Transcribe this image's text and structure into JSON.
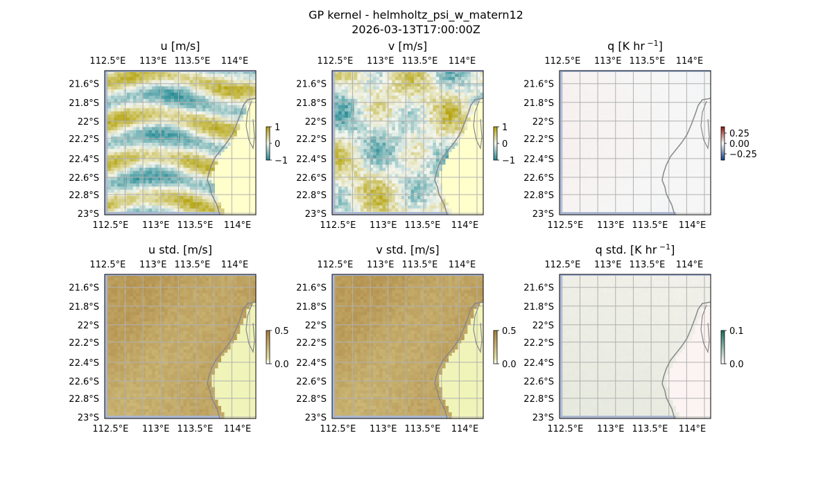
{
  "figure": {
    "title": "GP kernel - helmholtz_psi_w_matern12",
    "subtitle": "2026-03-13T17:00:00Z"
  },
  "colors": {
    "land": "#ffffcc",
    "ocean_mask": "#a8b9e0",
    "coast": "#888888",
    "grid": "#b0b0b0",
    "diverging_low": "#2a8c96",
    "diverging_mid": "#f4f6ee",
    "diverging_high": "#b5a410",
    "std_low": "#f0f4b8",
    "std_high": "#a87e3a",
    "q_low": "#dde8f2",
    "q_high": "#f6dcd2"
  },
  "chart_data": [
    {
      "type": "heatmap",
      "title": "u [m/s]",
      "colormap": "diverging",
      "xticks": [
        "112.5°E",
        "113°E",
        "113.5°E",
        "114°E"
      ],
      "yticks": [
        "21.6°S",
        "21.8°S",
        "22°S",
        "22.2°S",
        "22.4°S",
        "22.6°S",
        "22.8°S",
        "23°S"
      ],
      "xlim": [
        112.5,
        114.2
      ],
      "ylim": [
        -23.0,
        -21.45
      ],
      "colorbar": {
        "ticks": [
          "1",
          "0",
          "−1"
        ],
        "range": [
          -1,
          1
        ]
      },
      "field": "stripes"
    },
    {
      "type": "heatmap",
      "title": "v [m/s]",
      "colormap": "diverging",
      "xticks": [
        "112.5°E",
        "113°E",
        "113.5°E",
        "114°E"
      ],
      "yticks": [
        "21.6°S",
        "21.8°S",
        "22°S",
        "22.2°S",
        "22.4°S",
        "22.6°S",
        "22.8°S",
        "23°S"
      ],
      "xlim": [
        112.5,
        114.2
      ],
      "ylim": [
        -23.0,
        -21.45
      ],
      "colorbar": {
        "ticks": [
          "1",
          "0",
          "−1"
        ],
        "range": [
          -1,
          1
        ]
      },
      "field": "patches"
    },
    {
      "type": "heatmap",
      "title": "q [K hr",
      "title_sup": "−1",
      "title_end": "]",
      "colormap": "q",
      "xticks": [
        "112.5°E",
        "113°E",
        "113.5°E",
        "114°E"
      ],
      "yticks": [
        "21.6°S",
        "21.8°S",
        "22°S",
        "22.2°S",
        "22.4°S",
        "22.6°S",
        "22.8°S",
        "23°S"
      ],
      "xlim": [
        112.5,
        114.2
      ],
      "ylim": [
        -23.0,
        -21.45
      ],
      "colorbar": {
        "ticks": [
          "0.25",
          "0.00",
          "−0.25"
        ],
        "range": [
          -0.35,
          0.35
        ]
      },
      "field": "smooth"
    },
    {
      "type": "heatmap",
      "title": "u std. [m/s]",
      "colormap": "std",
      "xticks": [
        "112.5°E",
        "113°E",
        "113.5°E",
        "114°E"
      ],
      "yticks": [
        "21.6°S",
        "21.8°S",
        "22°S",
        "22.2°S",
        "22.4°S",
        "22.6°S",
        "22.8°S",
        "23°S"
      ],
      "xlim": [
        112.5,
        114.2
      ],
      "ylim": [
        -23.0,
        -21.45
      ],
      "colorbar": {
        "ticks": [
          "0.5",
          "0.0"
        ],
        "range": [
          0,
          0.5
        ]
      },
      "field": "std"
    },
    {
      "type": "heatmap",
      "title": "v std. [m/s]",
      "colormap": "std",
      "xticks": [
        "112.5°E",
        "113°E",
        "113.5°E",
        "114°E"
      ],
      "yticks": [
        "21.6°S",
        "21.8°S",
        "22°S",
        "22.2°S",
        "22.4°S",
        "22.6°S",
        "22.8°S",
        "23°S"
      ],
      "xlim": [
        112.5,
        114.2
      ],
      "ylim": [
        -23.0,
        -21.45
      ],
      "colorbar": {
        "ticks": [
          "0.5",
          "0.0"
        ],
        "range": [
          0,
          0.5
        ]
      },
      "field": "std"
    },
    {
      "type": "heatmap",
      "title": "q std. [K hr",
      "title_sup": "−1",
      "title_end": "]",
      "colormap": "qstd",
      "xticks": [
        "112.5°E",
        "113°E",
        "113.5°E",
        "114°E"
      ],
      "yticks": [
        "21.6°S",
        "21.8°S",
        "22°S",
        "22.2°S",
        "22.4°S",
        "22.6°S",
        "22.8°S",
        "23°S"
      ],
      "xlim": [
        112.5,
        114.2
      ],
      "ylim": [
        -23.0,
        -21.45
      ],
      "colorbar": {
        "ticks": [
          "0.1",
          "0.0"
        ],
        "range": [
          0,
          0.12
        ]
      },
      "field": "qstd"
    }
  ]
}
